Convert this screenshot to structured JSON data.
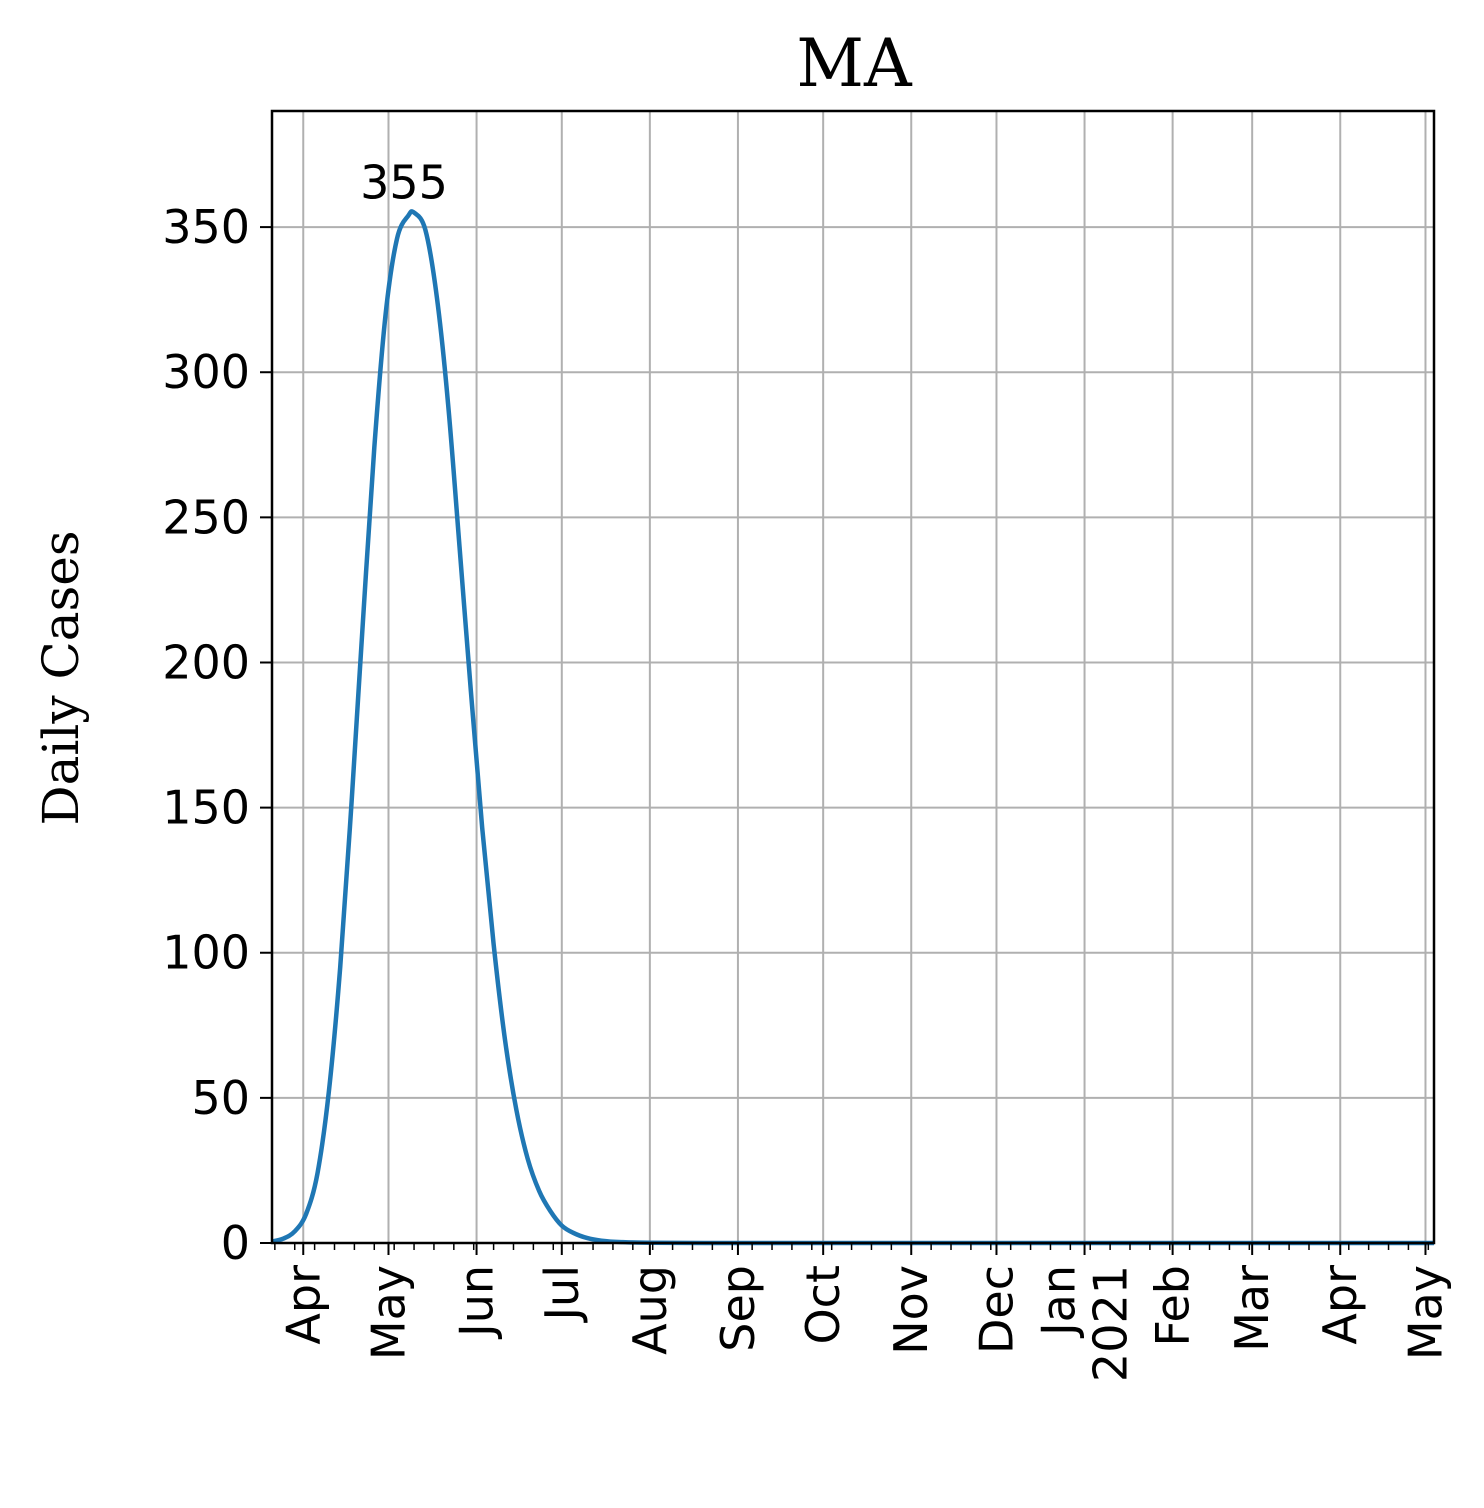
{
  "chart_data": {
    "type": "line",
    "title": "MA",
    "xlabel": "",
    "ylabel": "Daily Cases",
    "ylim": [
      0,
      390
    ],
    "xlim": [
      "2020-03-21",
      "2021-05-04"
    ],
    "grid": true,
    "yticks": [
      0,
      50,
      100,
      150,
      200,
      250,
      300,
      350
    ],
    "xticks": [
      {
        "date": "2020-04-01",
        "label": "Apr"
      },
      {
        "date": "2020-05-01",
        "label": "May"
      },
      {
        "date": "2020-06-01",
        "label": "Jun"
      },
      {
        "date": "2020-07-01",
        "label": "Jul"
      },
      {
        "date": "2020-08-01",
        "label": "Aug"
      },
      {
        "date": "2020-09-01",
        "label": "Sep"
      },
      {
        "date": "2020-10-01",
        "label": "Oct"
      },
      {
        "date": "2020-11-01",
        "label": "Nov"
      },
      {
        "date": "2020-12-01",
        "label": "Dec"
      },
      {
        "date": "2021-01-01",
        "label": "Jan\n2021"
      },
      {
        "date": "2021-02-01",
        "label": "Feb"
      },
      {
        "date": "2021-03-01",
        "label": "Mar"
      },
      {
        "date": "2021-04-01",
        "label": "Apr"
      },
      {
        "date": "2021-05-01",
        "label": "May"
      }
    ],
    "series": [
      {
        "color": "#1f77b4",
        "x": [
          "2020-03-21",
          "2020-03-25",
          "2020-03-29",
          "2020-04-02",
          "2020-04-06",
          "2020-04-10",
          "2020-04-14",
          "2020-04-18",
          "2020-04-22",
          "2020-04-26",
          "2020-04-30",
          "2020-05-04",
          "2020-05-08",
          "2020-05-10",
          "2020-05-14",
          "2020-05-18",
          "2020-05-22",
          "2020-05-26",
          "2020-05-30",
          "2020-06-03",
          "2020-06-07",
          "2020-06-11",
          "2020-06-15",
          "2020-06-19",
          "2020-06-23",
          "2020-06-27",
          "2020-07-01",
          "2020-07-05",
          "2020-07-10",
          "2020-07-15",
          "2020-07-22",
          "2020-08-01",
          "2020-09-01",
          "2020-10-01",
          "2020-11-01",
          "2020-12-01",
          "2021-01-01",
          "2021-02-01",
          "2021-03-01",
          "2021-04-01",
          "2021-05-04"
        ],
        "y": [
          0.5,
          1.5,
          4,
          10,
          24,
          52,
          95,
          152,
          214,
          274,
          320,
          346,
          354,
          355,
          349,
          326,
          289,
          240,
          190,
          143,
          103,
          70,
          46,
          29,
          18,
          11,
          6,
          3.5,
          1.7,
          0.8,
          0.3,
          0.1,
          0,
          0,
          0,
          0,
          0,
          0,
          0,
          0,
          0
        ]
      }
    ],
    "annotations": [
      {
        "text": "355",
        "x": "2020-05-10",
        "y": 355
      }
    ]
  }
}
